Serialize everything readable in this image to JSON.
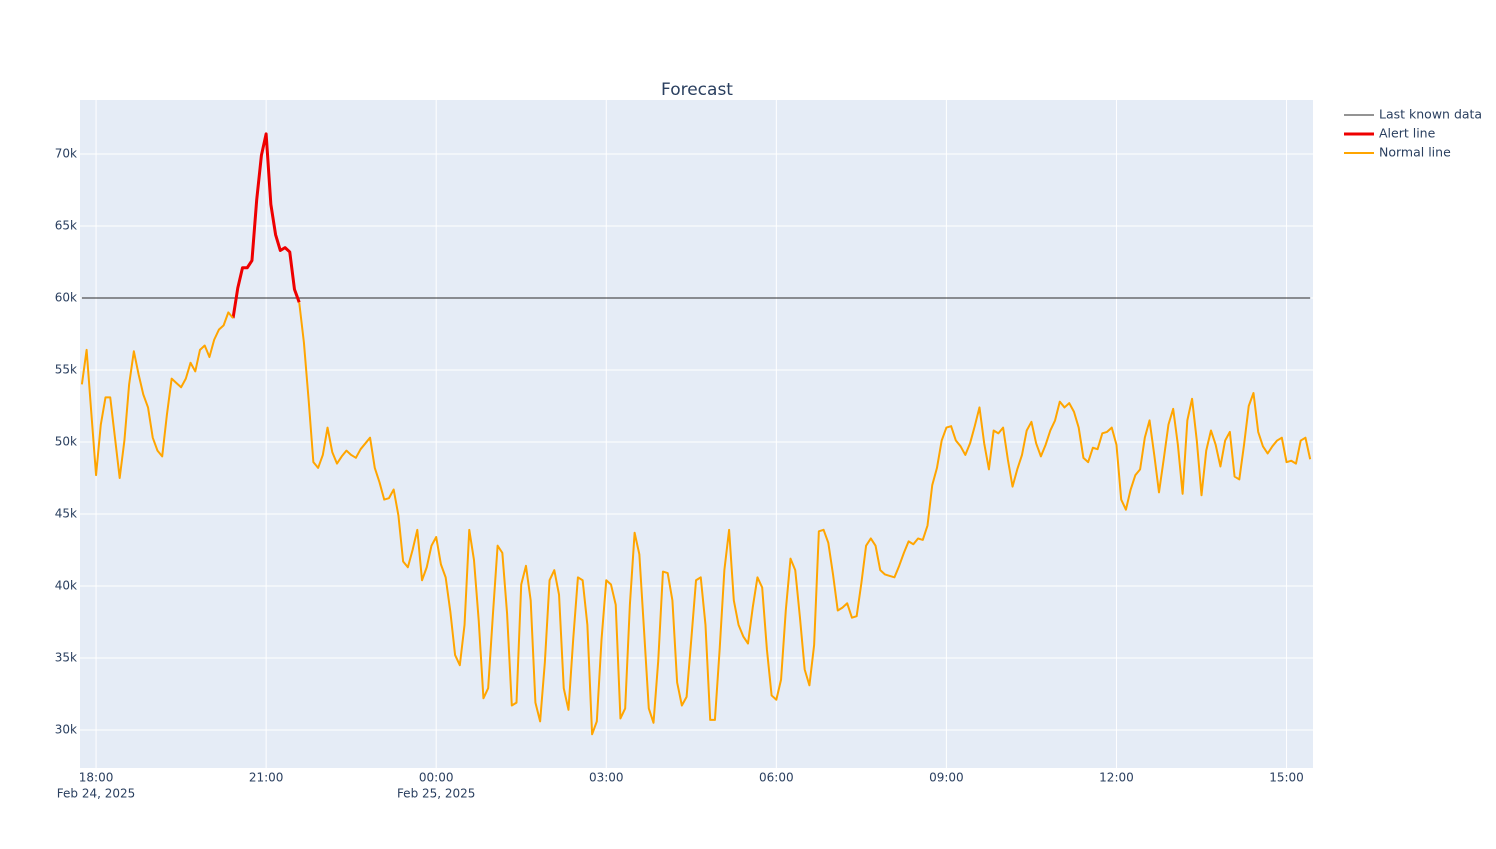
{
  "chart_data": {
    "type": "line",
    "title": "Forecast",
    "x": [
      "2025-02-24 17:45",
      "2025-02-24 17:50",
      "2025-02-24 17:55",
      "2025-02-24 18:00",
      "2025-02-24 18:05",
      "2025-02-24 18:10",
      "2025-02-24 18:15",
      "2025-02-24 18:20",
      "2025-02-24 18:25",
      "2025-02-24 18:30",
      "2025-02-24 18:35",
      "2025-02-24 18:40",
      "2025-02-24 18:45",
      "2025-02-24 18:50",
      "2025-02-24 18:55",
      "2025-02-24 19:00",
      "2025-02-24 19:05",
      "2025-02-24 19:10",
      "2025-02-24 19:15",
      "2025-02-24 19:20",
      "2025-02-24 19:25",
      "2025-02-24 19:30",
      "2025-02-24 19:35",
      "2025-02-24 19:40",
      "2025-02-24 19:45",
      "2025-02-24 19:50",
      "2025-02-24 19:55",
      "2025-02-24 20:00",
      "2025-02-24 20:05",
      "2025-02-24 20:10",
      "2025-02-24 20:15",
      "2025-02-24 20:20",
      "2025-02-24 20:25",
      "2025-02-24 20:30",
      "2025-02-24 20:35",
      "2025-02-24 20:40",
      "2025-02-24 20:45",
      "2025-02-24 20:50",
      "2025-02-24 20:55",
      "2025-02-24 21:00",
      "2025-02-24 21:05",
      "2025-02-24 21:10",
      "2025-02-24 21:15",
      "2025-02-24 21:20",
      "2025-02-24 21:25",
      "2025-02-24 21:30",
      "2025-02-24 21:35",
      "2025-02-24 21:40",
      "2025-02-24 21:45",
      "2025-02-24 21:50",
      "2025-02-24 21:55",
      "2025-02-24 22:00",
      "2025-02-24 22:05",
      "2025-02-24 22:10",
      "2025-02-24 22:15",
      "2025-02-24 22:20",
      "2025-02-24 22:25",
      "2025-02-24 22:30",
      "2025-02-24 22:35",
      "2025-02-24 22:40",
      "2025-02-24 22:45",
      "2025-02-24 22:50",
      "2025-02-24 22:55",
      "2025-02-24 23:00",
      "2025-02-24 23:05",
      "2025-02-24 23:10",
      "2025-02-24 23:15",
      "2025-02-24 23:20",
      "2025-02-24 23:25",
      "2025-02-24 23:30",
      "2025-02-24 23:35",
      "2025-02-24 23:40",
      "2025-02-24 23:45",
      "2025-02-24 23:50",
      "2025-02-24 23:55",
      "2025-02-25 00:00",
      "2025-02-25 00:05",
      "2025-02-25 00:10",
      "2025-02-25 00:15",
      "2025-02-25 00:20",
      "2025-02-25 00:25",
      "2025-02-25 00:30",
      "2025-02-25 00:35",
      "2025-02-25 00:40",
      "2025-02-25 00:45",
      "2025-02-25 00:50",
      "2025-02-25 00:55",
      "2025-02-25 01:00",
      "2025-02-25 01:05",
      "2025-02-25 01:10",
      "2025-02-25 01:15",
      "2025-02-25 01:20",
      "2025-02-25 01:25",
      "2025-02-25 01:30",
      "2025-02-25 01:35",
      "2025-02-25 01:40",
      "2025-02-25 01:45",
      "2025-02-25 01:50",
      "2025-02-25 01:55",
      "2025-02-25 02:00",
      "2025-02-25 02:05",
      "2025-02-25 02:10",
      "2025-02-25 02:15",
      "2025-02-25 02:20",
      "2025-02-25 02:25",
      "2025-02-25 02:30",
      "2025-02-25 02:35",
      "2025-02-25 02:40",
      "2025-02-25 02:45",
      "2025-02-25 02:50",
      "2025-02-25 02:55",
      "2025-02-25 03:00",
      "2025-02-25 03:05",
      "2025-02-25 03:10",
      "2025-02-25 03:15",
      "2025-02-25 03:20",
      "2025-02-25 03:25",
      "2025-02-25 03:30",
      "2025-02-25 03:35",
      "2025-02-25 03:40",
      "2025-02-25 03:45",
      "2025-02-25 03:50",
      "2025-02-25 03:55",
      "2025-02-25 04:00",
      "2025-02-25 04:05",
      "2025-02-25 04:10",
      "2025-02-25 04:15",
      "2025-02-25 04:20",
      "2025-02-25 04:25",
      "2025-02-25 04:30",
      "2025-02-25 04:35",
      "2025-02-25 04:40",
      "2025-02-25 04:45",
      "2025-02-25 04:50",
      "2025-02-25 04:55",
      "2025-02-25 05:00",
      "2025-02-25 05:05",
      "2025-02-25 05:10",
      "2025-02-25 05:15",
      "2025-02-25 05:20",
      "2025-02-25 05:25",
      "2025-02-25 05:30",
      "2025-02-25 05:35",
      "2025-02-25 05:40",
      "2025-02-25 05:45",
      "2025-02-25 05:50",
      "2025-02-25 05:55",
      "2025-02-25 06:00",
      "2025-02-25 06:05",
      "2025-02-25 06:10",
      "2025-02-25 06:15",
      "2025-02-25 06:20",
      "2025-02-25 06:25",
      "2025-02-25 06:30",
      "2025-02-25 06:35",
      "2025-02-25 06:40",
      "2025-02-25 06:45",
      "2025-02-25 06:50",
      "2025-02-25 06:55",
      "2025-02-25 07:00",
      "2025-02-25 07:05",
      "2025-02-25 07:10",
      "2025-02-25 07:15",
      "2025-02-25 07:20",
      "2025-02-25 07:25",
      "2025-02-25 07:30",
      "2025-02-25 07:35",
      "2025-02-25 07:40",
      "2025-02-25 07:45",
      "2025-02-25 07:50",
      "2025-02-25 07:55",
      "2025-02-25 08:00",
      "2025-02-25 08:05",
      "2025-02-25 08:10",
      "2025-02-25 08:15",
      "2025-02-25 08:20",
      "2025-02-25 08:25",
      "2025-02-25 08:30",
      "2025-02-25 08:35",
      "2025-02-25 08:40",
      "2025-02-25 08:45",
      "2025-02-25 08:50",
      "2025-02-25 08:55",
      "2025-02-25 09:00",
      "2025-02-25 09:05",
      "2025-02-25 09:10",
      "2025-02-25 09:15",
      "2025-02-25 09:20",
      "2025-02-25 09:25",
      "2025-02-25 09:30",
      "2025-02-25 09:35",
      "2025-02-25 09:40",
      "2025-02-25 09:45",
      "2025-02-25 09:50",
      "2025-02-25 09:55",
      "2025-02-25 10:00",
      "2025-02-25 10:05",
      "2025-02-25 10:10",
      "2025-02-25 10:15",
      "2025-02-25 10:20",
      "2025-02-25 10:25",
      "2025-02-25 10:30",
      "2025-02-25 10:35",
      "2025-02-25 10:40",
      "2025-02-25 10:45",
      "2025-02-25 10:50",
      "2025-02-25 10:55",
      "2025-02-25 11:00",
      "2025-02-25 11:05",
      "2025-02-25 11:10",
      "2025-02-25 11:15",
      "2025-02-25 11:20",
      "2025-02-25 11:25",
      "2025-02-25 11:30",
      "2025-02-25 11:35",
      "2025-02-25 11:40",
      "2025-02-25 11:45",
      "2025-02-25 11:50",
      "2025-02-25 11:55",
      "2025-02-25 12:00",
      "2025-02-25 12:05",
      "2025-02-25 12:10",
      "2025-02-25 12:15",
      "2025-02-25 12:20",
      "2025-02-25 12:25",
      "2025-02-25 12:30",
      "2025-02-25 12:35",
      "2025-02-25 12:40",
      "2025-02-25 12:45",
      "2025-02-25 12:50",
      "2025-02-25 12:55",
      "2025-02-25 13:00",
      "2025-02-25 13:05",
      "2025-02-25 13:10",
      "2025-02-25 13:15",
      "2025-02-25 13:20",
      "2025-02-25 13:25",
      "2025-02-25 13:30",
      "2025-02-25 13:35",
      "2025-02-25 13:40",
      "2025-02-25 13:45",
      "2025-02-25 13:50",
      "2025-02-25 13:55",
      "2025-02-25 14:00",
      "2025-02-25 14:05",
      "2025-02-25 14:10",
      "2025-02-25 14:15",
      "2025-02-25 14:20",
      "2025-02-25 14:25",
      "2025-02-25 14:30",
      "2025-02-25 14:35",
      "2025-02-25 14:40",
      "2025-02-25 14:45",
      "2025-02-25 14:50",
      "2025-02-25 14:55",
      "2025-02-25 15:00",
      "2025-02-25 15:05",
      "2025-02-25 15:10",
      "2025-02-25 15:15",
      "2025-02-25 15:20",
      "2025-02-25 15:25"
    ],
    "series": [
      {
        "name": "Last known data",
        "color": "#2a2a2a",
        "width": 1,
        "x": [
          "2025-02-24 17:45",
          "2025-02-25 15:25"
        ],
        "values": [
          60000,
          60000
        ]
      },
      {
        "name": "Alert line",
        "color": "#ee0000",
        "width": 3,
        "x": [
          "2025-02-24 20:25",
          "2025-02-24 20:30",
          "2025-02-24 20:35",
          "2025-02-24 20:40",
          "2025-02-24 20:45",
          "2025-02-24 20:50",
          "2025-02-24 20:55",
          "2025-02-24 21:00",
          "2025-02-24 21:05",
          "2025-02-24 21:10",
          "2025-02-24 21:15",
          "2025-02-24 21:20",
          "2025-02-24 21:25",
          "2025-02-24 21:30",
          "2025-02-24 21:35"
        ],
        "values": [
          58600,
          60700,
          62100,
          62100,
          62600,
          66800,
          69900,
          71400,
          66500,
          64400,
          63300,
          63500,
          63200,
          60600,
          59700
        ]
      },
      {
        "name": "Normal line",
        "color": "#ffa500",
        "width": 2,
        "values": [
          54000,
          56400,
          52000,
          47700,
          51200,
          53100,
          53100,
          50300,
          47500,
          50100,
          54000,
          56300,
          54700,
          53300,
          52400,
          50300,
          49400,
          49000,
          51900,
          54400,
          54100,
          53800,
          54400,
          55500,
          54900,
          56400,
          56700,
          55900,
          57100,
          57800,
          58100,
          59000,
          58600,
          null,
          null,
          null,
          null,
          null,
          null,
          null,
          null,
          null,
          null,
          null,
          null,
          null,
          59700,
          56900,
          52900,
          48600,
          48200,
          49100,
          51000,
          49300,
          48500,
          49000,
          49400,
          49100,
          48900,
          49500,
          49900,
          50300,
          48200,
          47200,
          46000,
          46100,
          46700,
          44900,
          41700,
          41300,
          42500,
          43900,
          40400,
          41300,
          42800,
          43400,
          41500,
          40600,
          38200,
          35200,
          34500,
          37300,
          43900,
          41800,
          37600,
          32200,
          32900,
          38000,
          42800,
          42300,
          38100,
          31700,
          31900,
          40100,
          41400,
          39000,
          31900,
          30600,
          34700,
          40400,
          41100,
          39400,
          32900,
          31400,
          36300,
          40600,
          40400,
          37300,
          29700,
          30600,
          36300,
          40400,
          40100,
          38700,
          30800,
          31500,
          38700,
          43700,
          42200,
          36900,
          31500,
          30500,
          34800,
          41000,
          40900,
          39000,
          33300,
          31700,
          32300,
          36300,
          40400,
          40600,
          37300,
          30700,
          30700,
          35600,
          41100,
          43900,
          39000,
          37300,
          36500,
          36000,
          38500,
          40600,
          39900,
          35600,
          32400,
          32100,
          33500,
          38300,
          41900,
          41100,
          37800,
          34200,
          33100,
          35900,
          43800,
          43900,
          43000,
          40800,
          38300,
          38500,
          38800,
          37800,
          37900,
          40200,
          42800,
          43300,
          42800,
          41100,
          40800,
          40700,
          40600,
          41400,
          42300,
          43100,
          42900,
          43300,
          43200,
          44200,
          47000,
          48200,
          50100,
          51000,
          51100,
          50100,
          49700,
          49100,
          49900,
          51100,
          52400,
          49900,
          48100,
          50800,
          50600,
          51000,
          48800,
          46900,
          48100,
          49100,
          50800,
          51400,
          49900,
          49000,
          49800,
          50800,
          51500,
          52800,
          52400,
          52700,
          52100,
          51000,
          48900,
          48600,
          49600,
          49500,
          50600,
          50700,
          51000,
          49800,
          46000,
          45300,
          46700,
          47700,
          48100,
          50300,
          51500,
          49100,
          46500,
          48800,
          51200,
          52300,
          49800,
          46400,
          51500,
          53000,
          50100,
          46300,
          49400,
          50800,
          49800,
          48300,
          50100,
          50700,
          47600,
          47400,
          49800,
          52500,
          53400,
          50700,
          49700,
          49200,
          49700,
          50100,
          50300,
          48600,
          48700,
          48500,
          50100,
          50300,
          48800
        ]
      }
    ],
    "xlim": [
      "2025-02-24 17:43",
      "2025-02-25 15:28"
    ],
    "xticks": [
      {
        "value": "2025-02-24 18:00",
        "label": "18:00",
        "date": "Feb 24, 2025"
      },
      {
        "value": "2025-02-24 21:00",
        "label": "21:00"
      },
      {
        "value": "2025-02-25 00:00",
        "label": "00:00",
        "date": "Feb 25, 2025"
      },
      {
        "value": "2025-02-25 03:00",
        "label": "03:00"
      },
      {
        "value": "2025-02-25 06:00",
        "label": "06:00"
      },
      {
        "value": "2025-02-25 09:00",
        "label": "09:00"
      },
      {
        "value": "2025-02-25 12:00",
        "label": "12:00"
      },
      {
        "value": "2025-02-25 15:00",
        "label": "15:00"
      }
    ],
    "ylim": [
      27360,
      73750
    ],
    "yticks": [
      {
        "value": 30000,
        "label": "30k"
      },
      {
        "value": 35000,
        "label": "35k"
      },
      {
        "value": 40000,
        "label": "40k"
      },
      {
        "value": 45000,
        "label": "45k"
      },
      {
        "value": 50000,
        "label": "50k"
      },
      {
        "value": 55000,
        "label": "55k"
      },
      {
        "value": 60000,
        "label": "60k"
      },
      {
        "value": 65000,
        "label": "65k"
      },
      {
        "value": 70000,
        "label": "70k"
      }
    ],
    "grid": true,
    "legend": "right"
  }
}
